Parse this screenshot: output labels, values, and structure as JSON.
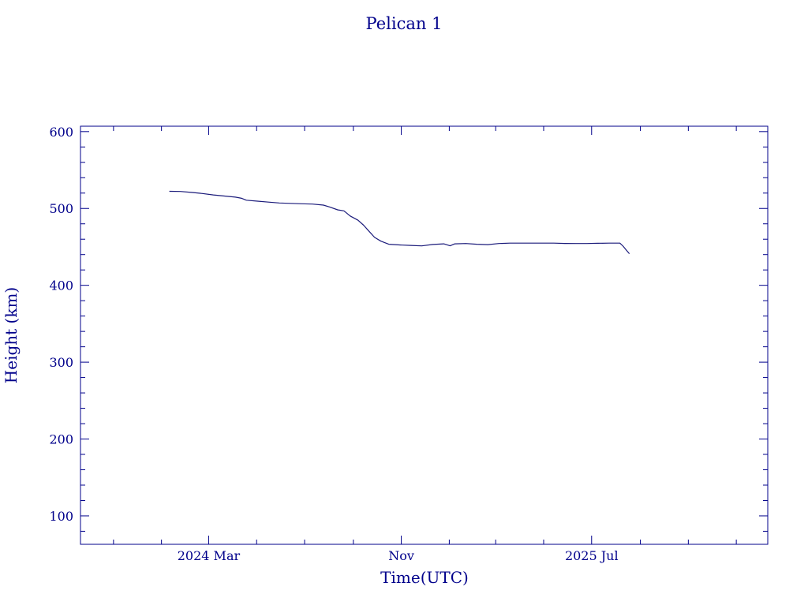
{
  "chart_data": {
    "type": "line",
    "title": "Pelican 1",
    "xlabel": "Time(UTC)",
    "ylabel": "Height (km)",
    "xlim": [
      "2023-09-20",
      "2026-02-10"
    ],
    "ylim": [
      63,
      607
    ],
    "x_ticks": [
      {
        "date": "2024-03-01",
        "label": "2024 Mar"
      },
      {
        "date": "2024-11-01",
        "label": "Nov"
      },
      {
        "date": "2025-07-01",
        "label": "2025 Jul"
      }
    ],
    "x_minor_ticks": [
      "2023-11-01",
      "2024-01-01",
      "2024-05-01",
      "2024-07-01",
      "2024-09-01",
      "2025-01-01",
      "2025-03-01",
      "2025-05-01",
      "2025-09-01",
      "2025-11-01",
      "2026-01-01"
    ],
    "y_ticks": [
      100,
      200,
      300,
      400,
      500,
      600
    ],
    "y_minor_step": 20,
    "grid": false,
    "colors": {
      "axis": "#00008b",
      "series": "#1a1a7a",
      "text": "#00008b"
    },
    "series": [
      {
        "points": [
          [
            "2024-01-11",
            522.3
          ],
          [
            "2024-01-25",
            522.1
          ],
          [
            "2024-02-08",
            520.9
          ],
          [
            "2024-02-22",
            519.4
          ],
          [
            "2024-03-07",
            517.6
          ],
          [
            "2024-03-21",
            516.2
          ],
          [
            "2024-04-04",
            514.7
          ],
          [
            "2024-04-12",
            513.2
          ],
          [
            "2024-04-18",
            510.7
          ],
          [
            "2024-05-02",
            509.5
          ],
          [
            "2024-05-16",
            508.3
          ],
          [
            "2024-05-30",
            507.1
          ],
          [
            "2024-06-13",
            506.6
          ],
          [
            "2024-06-27",
            506.1
          ],
          [
            "2024-07-11",
            505.7
          ],
          [
            "2024-07-25",
            504.4
          ],
          [
            "2024-08-02",
            501.9
          ],
          [
            "2024-08-12",
            498.2
          ],
          [
            "2024-08-20",
            496.9
          ],
          [
            "2024-08-28",
            490.2
          ],
          [
            "2024-09-07",
            484.7
          ],
          [
            "2024-09-14",
            478.2
          ],
          [
            "2024-09-21",
            470.3
          ],
          [
            "2024-09-28",
            462.4
          ],
          [
            "2024-10-06",
            457.5
          ],
          [
            "2024-10-16",
            453.4
          ],
          [
            "2024-10-30",
            452.5
          ],
          [
            "2024-11-13",
            451.9
          ],
          [
            "2024-11-27",
            451.3
          ],
          [
            "2024-12-11",
            453.1
          ],
          [
            "2024-12-25",
            454.0
          ],
          [
            "2025-01-02",
            451.4
          ],
          [
            "2025-01-08",
            454.0
          ],
          [
            "2025-01-22",
            454.4
          ],
          [
            "2025-02-05",
            453.4
          ],
          [
            "2025-02-19",
            452.9
          ],
          [
            "2025-03-05",
            454.4
          ],
          [
            "2025-03-19",
            454.9
          ],
          [
            "2025-04-02",
            454.9
          ],
          [
            "2025-04-16",
            454.9
          ],
          [
            "2025-04-30",
            454.9
          ],
          [
            "2025-05-14",
            454.9
          ],
          [
            "2025-05-28",
            454.5
          ],
          [
            "2025-06-11",
            454.4
          ],
          [
            "2025-06-25",
            454.4
          ],
          [
            "2025-07-09",
            454.7
          ],
          [
            "2025-07-23",
            454.9
          ],
          [
            "2025-08-06",
            454.9
          ],
          [
            "2025-08-10",
            451.0
          ],
          [
            "2025-08-14",
            446.0
          ],
          [
            "2025-08-18",
            441.1
          ]
        ]
      }
    ]
  }
}
